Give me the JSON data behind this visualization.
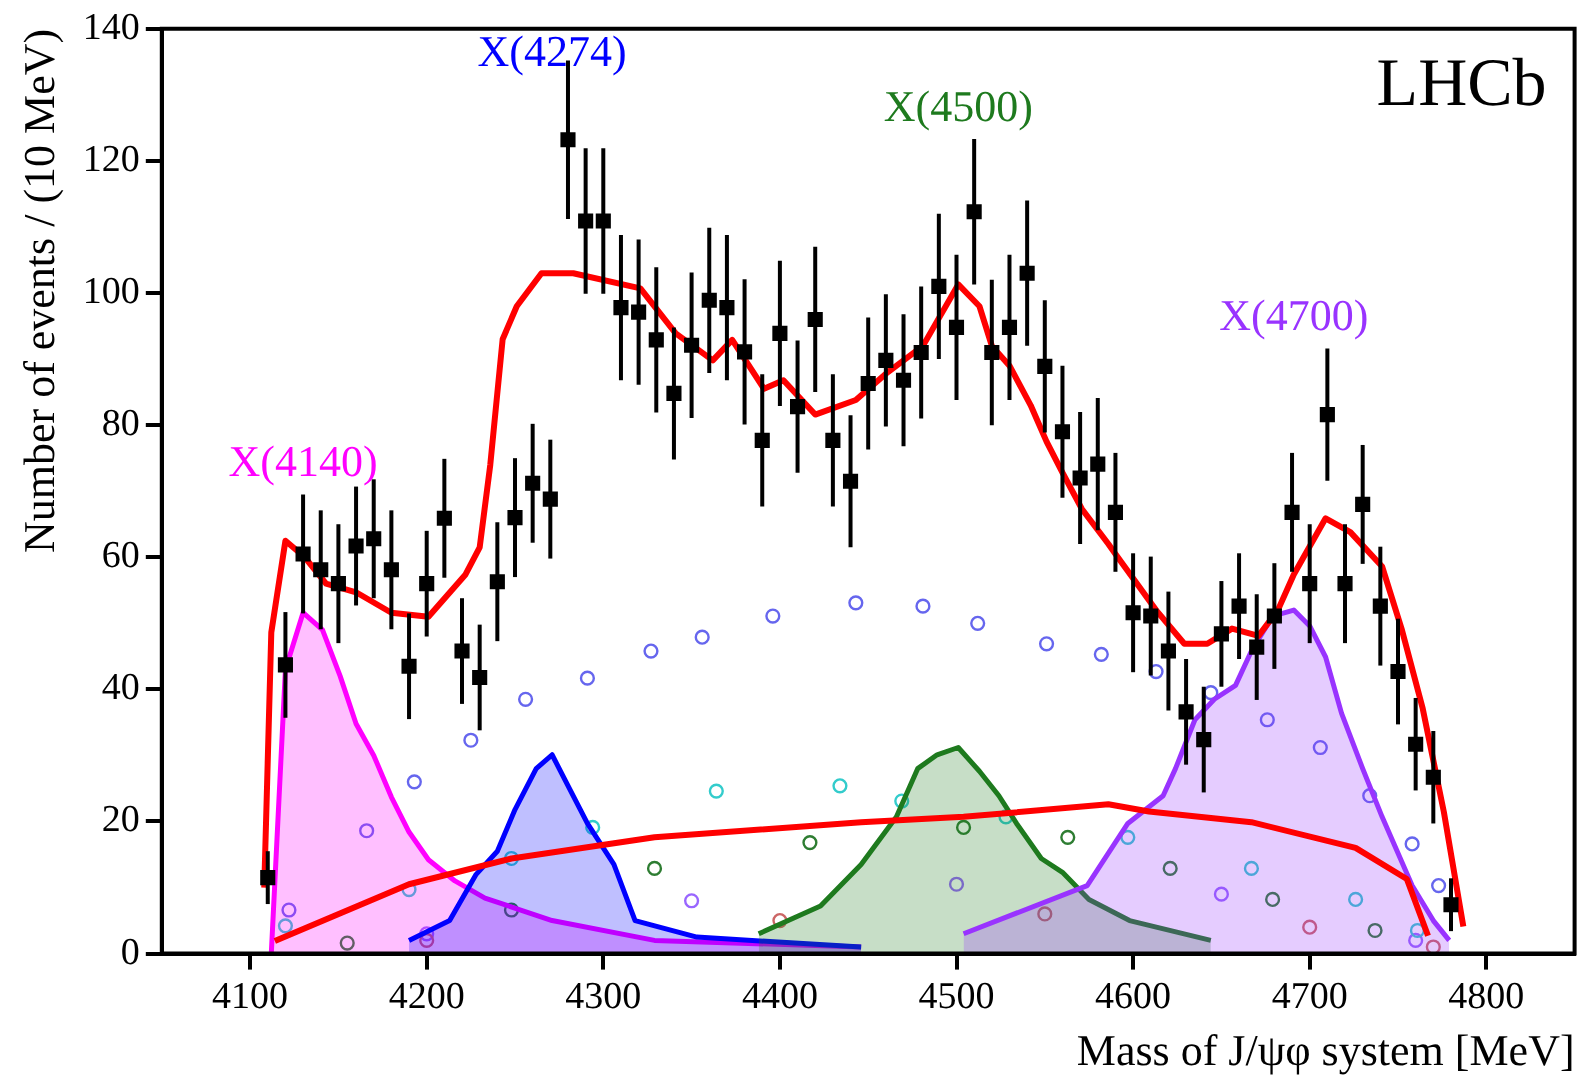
{
  "chart_data": {
    "type": "line",
    "xlabel": "Mass of J/ψφ system [MeV]",
    "ylabel": "Number of events / (10 MeV)",
    "xlim": [
      4050,
      4850
    ],
    "xticks": [
      4100,
      4200,
      4300,
      4400,
      4500,
      4600,
      4700,
      4800
    ],
    "ylim": [
      0,
      140
    ],
    "yticks": [
      0,
      20,
      40,
      60,
      80,
      100,
      120,
      140
    ],
    "legend": false,
    "annotations": [
      "LHCb"
    ],
    "series": [
      {
        "type": "scatter",
        "marker": "circle",
        "color": "#6666ee",
        "x": [
          4122,
          4166,
          4193,
          4225,
          4256,
          4291,
          4327,
          4356,
          4396,
          4443,
          4481,
          4512,
          4551,
          4582,
          4613,
          4644,
          4676,
          4706,
          4734,
          4758,
          4773
        ],
        "values": [
          6.6,
          18.6,
          26,
          32.3,
          38.5,
          41.7,
          45.8,
          47.9,
          51.1,
          53.1,
          52.6,
          50,
          46.9,
          45.3,
          42.7,
          39.5,
          35.4,
          31.2,
          23.9,
          16.6,
          10.3
        ]
      },
      {
        "type": "scatter",
        "marker": "circle",
        "color": "#2e7d32",
        "x": [
          4155,
          4248,
          4329,
          4417,
          4504,
          4563,
          4621,
          4679,
          4737
        ],
        "values": [
          1.6,
          6.6,
          12.9,
          16.8,
          19.1,
          17.6,
          12.9,
          8.2,
          3.5
        ]
      },
      {
        "type": "scatter",
        "marker": "circle",
        "color": "#9966ff",
        "x": [
          4200,
          4350,
          4500,
          4650,
          4760
        ],
        "values": [
          3,
          8,
          10.5,
          9,
          2
        ]
      },
      {
        "type": "scatter",
        "marker": "circle",
        "color": "#cc6666",
        "x": [
          4200,
          4400,
          4550,
          4700,
          4770
        ],
        "values": [
          2,
          5,
          6,
          4,
          1
        ]
      },
      {
        "type": "scatter",
        "marker": "circle",
        "color": "#33cccc",
        "x": [
          4120,
          4190,
          4248,
          4294,
          4364,
          4434,
          4469,
          4528,
          4597,
          4667,
          4726,
          4761
        ],
        "values": [
          4.2,
          9.7,
          14.4,
          19.1,
          24.6,
          25.4,
          23.1,
          20.7,
          17.6,
          12.9,
          8.2,
          3.5
        ]
      },
      {
        "type": "area",
        "name": "X(4140)",
        "color": "#ff00ff",
        "x": [
          4112,
          4120,
          4130,
          4141,
          4151,
          4160,
          4170,
          4180,
          4190,
          4201,
          4216,
          4233,
          4271,
          4329,
          4446
        ],
        "values": [
          0,
          43,
          51.6,
          49,
          42,
          34.8,
          30,
          23.7,
          18.4,
          14.2,
          11,
          8.4,
          5,
          2,
          1
        ]
      },
      {
        "type": "area",
        "name": "X(4274)",
        "color": "#0000ff",
        "x": [
          4190,
          4213,
          4228,
          4240,
          4250,
          4262,
          4271,
          4281,
          4291,
          4306,
          4318,
          4353,
          4446
        ],
        "values": [
          2,
          5,
          12,
          15.5,
          21.8,
          28,
          30.1,
          24.9,
          19.7,
          13.5,
          5,
          2.5,
          1
        ]
      },
      {
        "type": "area",
        "name": "X(4500)",
        "color": "#1e7a1e",
        "x": [
          4388,
          4423,
          4446,
          4466,
          4478,
          4489,
          4501,
          4513,
          4524,
          4534,
          4548,
          4560,
          4575,
          4598,
          4644
        ],
        "values": [
          3,
          7.2,
          13.5,
          20.7,
          28,
          30.1,
          31.2,
          27.6,
          23.9,
          19.7,
          14.4,
          12.3,
          8.2,
          5,
          2
        ]
      },
      {
        "type": "area",
        "name": "X(4700)",
        "color": "#9933ff",
        "x": [
          4504,
          4574,
          4597,
          4617,
          4624,
          4635,
          4646,
          4658,
          4667,
          4679,
          4691,
          4700,
          4709,
          4718,
          4730,
          4741,
          4758,
          4770,
          4779
        ],
        "values": [
          3,
          10.3,
          19.7,
          23.9,
          28,
          35.4,
          38.5,
          40.6,
          45.8,
          51.1,
          52,
          49.6,
          44.9,
          36.4,
          28,
          20.7,
          10.3,
          5,
          2
        ]
      },
      {
        "color": "#ff0000",
        "x": [
          4114,
          4190,
          4248,
          4329,
          4446,
          4504,
          4586,
          4609,
          4667,
          4726,
          4755,
          4767
        ],
        "values": [
          1.9,
          10.5,
          14.4,
          17.6,
          19.9,
          20.7,
          22.6,
          21.5,
          19.9,
          16,
          11.3,
          2.7
        ]
      },
      {
        "color": "#ff0000",
        "x": [
          4108,
          4112,
          4120,
          4131,
          4143,
          4160,
          4180,
          4201,
          4222,
          4230,
          4236,
          4243,
          4251,
          4265,
          4283,
          4321,
          4341,
          4362,
          4373,
          4391,
          4402,
          4420,
          4443,
          4461,
          4481,
          4501,
          4513,
          4520,
          4530,
          4542,
          4551,
          4560,
          4571,
          4586,
          4590,
          4613,
          4629,
          4642,
          4656,
          4671,
          4682,
          4691,
          4709,
          4723,
          4741,
          4752,
          4764,
          4776,
          4787
        ],
        "values": [
          10,
          48.6,
          62.5,
          60,
          56,
          54.7,
          51.6,
          51,
          57.4,
          61.5,
          74,
          93,
          98,
          103,
          103,
          100.7,
          93.9,
          89.8,
          92.9,
          85.5,
          86.8,
          81.6,
          83.8,
          88,
          92,
          101.3,
          98,
          92,
          89,
          83,
          77.5,
          72.8,
          67.3,
          62,
          60.5,
          52,
          46.9,
          46.9,
          49.2,
          48.1,
          52,
          57.4,
          65.9,
          63.8,
          58.6,
          49.2,
          37.1,
          21.4,
          4.1
        ]
      },
      {
        "type": "scatter",
        "marker": "square",
        "color": "#000000",
        "x": [
          4110,
          4120,
          4130,
          4140,
          4150,
          4160,
          4170,
          4180,
          4190,
          4200,
          4210,
          4220,
          4230,
          4240,
          4250,
          4260,
          4270,
          4280,
          4290,
          4300,
          4310,
          4320,
          4330,
          4340,
          4350,
          4360,
          4370,
          4380,
          4390,
          4400,
          4410,
          4420,
          4430,
          4440,
          4450,
          4460,
          4470,
          4480,
          4490,
          4500,
          4510,
          4520,
          4530,
          4540,
          4550,
          4560,
          4570,
          4580,
          4590,
          4600,
          4610,
          4620,
          4630,
          4640,
          4650,
          4660,
          4670,
          4680,
          4690,
          4700,
          4710,
          4720,
          4730,
          4740,
          4750,
          4760,
          4770,
          4780
        ],
        "values": [
          11.5,
          43.7,
          60.5,
          58.1,
          56,
          61.7,
          62.8,
          58.1,
          43.5,
          56,
          65.9,
          45.8,
          41.8,
          56.3,
          66,
          71.2,
          68.8,
          123.2,
          110.9,
          110.9,
          97.8,
          97.1,
          92.9,
          84.8,
          92.1,
          98.9,
          97.8,
          91.1,
          77.7,
          93.9,
          82.8,
          96,
          77.7,
          71.5,
          86.3,
          89.8,
          86.8,
          91,
          101,
          94.8,
          112.3,
          91,
          94.8,
          103,
          88.9,
          79,
          72,
          74.1,
          66.8,
          51.6,
          51.1,
          45.8,
          36.6,
          32.4,
          48.4,
          52.6,
          46.4,
          51.1,
          66.8,
          56,
          81.6,
          56,
          68,
          52.6,
          42.7,
          31.7,
          26.7,
          7.4
        ],
        "errors": [
          4,
          8,
          9,
          9,
          9,
          9,
          9,
          9,
          8,
          8,
          9,
          8,
          8,
          9,
          9,
          9,
          9,
          12,
          11,
          11,
          11,
          11,
          11,
          10,
          11,
          11,
          11,
          11,
          10,
          11,
          10,
          11,
          10,
          10,
          10,
          10,
          10,
          10,
          11,
          11,
          11,
          11,
          11,
          11,
          10,
          10,
          10,
          10,
          9,
          9,
          9,
          9,
          8,
          8,
          8,
          8,
          8,
          8,
          9,
          9,
          10,
          9,
          9,
          9,
          8,
          7,
          7,
          4
        ]
      }
    ]
  }
}
